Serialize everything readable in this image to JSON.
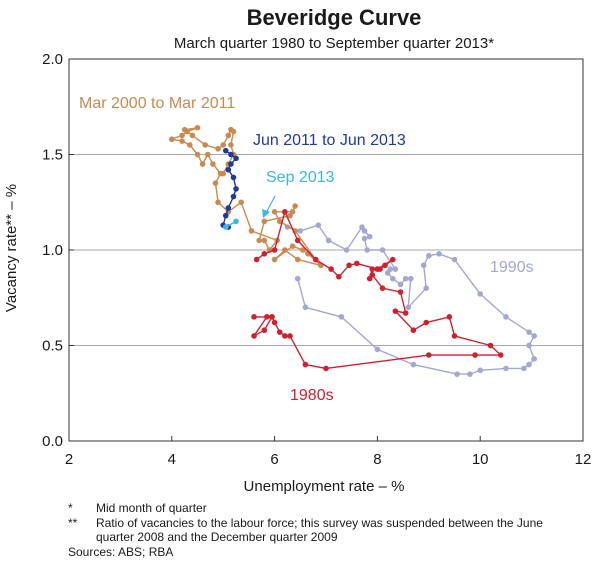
{
  "chart_data": {
    "type": "scatter-line",
    "title": "Beveridge Curve",
    "subtitle": "March quarter 1980 to September quarter 2013*",
    "xlabel": "Unemployment rate – %",
    "ylabel": "Vacancy rate** – %",
    "xlim": [
      2,
      12
    ],
    "ylim": [
      0,
      2
    ],
    "xticks": [
      2,
      4,
      6,
      8,
      10,
      12
    ],
    "yticks": [
      0.0,
      0.5,
      1.0,
      1.5,
      2.0
    ],
    "xtick_labels": [
      "2",
      "4",
      "6",
      "8",
      "10",
      "12"
    ],
    "ytick_labels": [
      "0.0",
      "0.5",
      "1.0",
      "1.5",
      "2.0"
    ],
    "grid": "horizontal",
    "series": [
      {
        "name": "1980s",
        "color": "#d0202e",
        "points": [
          [
            5.6,
            0.65
          ],
          [
            5.85,
            0.65
          ],
          [
            5.6,
            0.55
          ],
          [
            5.8,
            0.58
          ],
          [
            5.95,
            0.65
          ],
          [
            6.0,
            0.62
          ],
          [
            6.1,
            0.57
          ],
          [
            6.2,
            0.55
          ],
          [
            6.3,
            0.55
          ],
          [
            6.6,
            0.4
          ],
          [
            7.0,
            0.38
          ],
          [
            9.0,
            0.45
          ],
          [
            9.9,
            0.45
          ],
          [
            10.4,
            0.45
          ],
          [
            10.2,
            0.5
          ],
          [
            9.5,
            0.55
          ],
          [
            9.4,
            0.65
          ],
          [
            8.95,
            0.62
          ],
          [
            8.7,
            0.58
          ],
          [
            8.35,
            0.68
          ],
          [
            8.55,
            0.67
          ],
          [
            8.45,
            0.78
          ],
          [
            8.1,
            0.8
          ],
          [
            7.9,
            0.87
          ],
          [
            7.85,
            0.85
          ],
          [
            7.9,
            0.9
          ],
          [
            8.05,
            0.9
          ],
          [
            8.15,
            0.92
          ],
          [
            8.3,
            0.95
          ],
          [
            8.0,
            0.9
          ],
          [
            7.6,
            0.93
          ],
          [
            7.45,
            0.92
          ],
          [
            7.25,
            0.86
          ],
          [
            7.1,
            0.9
          ],
          [
            6.8,
            0.95
          ],
          [
            6.45,
            1.05
          ],
          [
            6.2,
            1.2
          ],
          [
            6.0,
            1.0
          ],
          [
            5.8,
            0.98
          ],
          [
            5.65,
            0.95
          ]
        ]
      },
      {
        "name": "1990s",
        "color": "#a4a7d2",
        "points": [
          [
            6.45,
            0.85
          ],
          [
            6.6,
            0.7
          ],
          [
            7.3,
            0.65
          ],
          [
            8.0,
            0.48
          ],
          [
            8.7,
            0.4
          ],
          [
            9.55,
            0.35
          ],
          [
            9.8,
            0.35
          ],
          [
            10.0,
            0.37
          ],
          [
            10.5,
            0.38
          ],
          [
            10.85,
            0.38
          ],
          [
            10.95,
            0.4
          ],
          [
            11.05,
            0.43
          ],
          [
            10.95,
            0.5
          ],
          [
            11.05,
            0.55
          ],
          [
            10.95,
            0.57
          ],
          [
            10.5,
            0.65
          ],
          [
            10.0,
            0.77
          ],
          [
            9.5,
            0.95
          ],
          [
            9.2,
            0.98
          ],
          [
            9.0,
            0.97
          ],
          [
            8.9,
            0.92
          ],
          [
            8.95,
            0.8
          ],
          [
            8.6,
            0.7
          ],
          [
            8.65,
            0.85
          ],
          [
            8.55,
            0.85
          ],
          [
            8.45,
            0.82
          ],
          [
            8.3,
            0.85
          ],
          [
            8.2,
            0.88
          ],
          [
            8.25,
            0.9
          ],
          [
            8.35,
            0.9
          ],
          [
            8.1,
            1.0
          ],
          [
            7.8,
            1.0
          ],
          [
            7.75,
            1.06
          ],
          [
            7.85,
            1.07
          ],
          [
            7.75,
            1.1
          ],
          [
            7.7,
            1.12
          ],
          [
            7.4,
            1.0
          ],
          [
            7.05,
            1.05
          ],
          [
            6.85,
            1.13
          ],
          [
            6.5,
            1.1
          ],
          [
            6.25,
            1.12
          ]
        ]
      },
      {
        "name": "Mar 2000 to Mar 2011",
        "color": "#c88a50",
        "points": [
          [
            6.9,
            0.92
          ],
          [
            6.45,
            0.95
          ],
          [
            6.2,
            1.0
          ],
          [
            6.0,
            0.95
          ],
          [
            6.35,
            1.02
          ],
          [
            6.55,
            1.0
          ],
          [
            6.65,
            0.98
          ],
          [
            6.9,
            0.92
          ],
          [
            6.8,
            0.95
          ],
          [
            6.4,
            1.1
          ],
          [
            6.1,
            1.15
          ],
          [
            6.0,
            1.2
          ],
          [
            6.35,
            1.2
          ],
          [
            6.4,
            1.23
          ],
          [
            6.3,
            1.18
          ],
          [
            5.8,
            1.15
          ],
          [
            5.7,
            1.05
          ],
          [
            5.8,
            1.05
          ],
          [
            5.9,
            1.0
          ],
          [
            6.05,
            1.05
          ],
          [
            5.55,
            1.1
          ],
          [
            5.35,
            1.25
          ],
          [
            5.1,
            1.2
          ],
          [
            4.9,
            1.25
          ],
          [
            4.85,
            1.35
          ],
          [
            4.95,
            1.4
          ],
          [
            4.8,
            1.45
          ],
          [
            4.7,
            1.5
          ],
          [
            4.6,
            1.45
          ],
          [
            4.5,
            1.5
          ],
          [
            4.35,
            1.55
          ],
          [
            4.2,
            1.57
          ],
          [
            4.0,
            1.58
          ],
          [
            4.2,
            1.6
          ],
          [
            4.3,
            1.62
          ],
          [
            4.5,
            1.64
          ],
          [
            4.25,
            1.63
          ],
          [
            4.4,
            1.6
          ],
          [
            4.65,
            1.55
          ],
          [
            4.9,
            1.53
          ],
          [
            5.0,
            1.55
          ],
          [
            5.1,
            1.6
          ],
          [
            5.15,
            1.63
          ],
          [
            5.2,
            1.62
          ],
          [
            5.15,
            1.55
          ],
          [
            5.2,
            1.5
          ],
          [
            5.1,
            1.45
          ],
          [
            5.0,
            1.4
          ]
        ]
      },
      {
        "name": "Jun 2011 to Jun 2013",
        "color": "#1f3a9a",
        "points": [
          [
            5.05,
            1.52
          ],
          [
            5.15,
            1.5
          ],
          [
            5.25,
            1.48
          ],
          [
            5.15,
            1.45
          ],
          [
            5.1,
            1.42
          ],
          [
            5.2,
            1.38
          ],
          [
            5.25,
            1.32
          ],
          [
            5.2,
            1.28
          ],
          [
            5.1,
            1.22
          ],
          [
            5.05,
            1.18
          ],
          [
            5.0,
            1.13
          ],
          [
            5.1,
            1.12
          ]
        ]
      },
      {
        "name": "Sep 2013",
        "color": "#3ab6e8",
        "points": [
          [
            5.05,
            1.12
          ],
          [
            5.25,
            1.15
          ]
        ]
      }
    ],
    "annotations": [
      {
        "text": "Mar 2000 to Mar 2011",
        "series": "Mar 2000 to Mar 2011"
      },
      {
        "text": "Jun 2011 to Jun 2013",
        "series": "Jun 2011 to Jun 2013"
      },
      {
        "text": "Sep 2013",
        "series": "Sep 2013"
      },
      {
        "text": "1990s",
        "series": "1990s"
      },
      {
        "text": "1980s",
        "series": "1980s"
      }
    ]
  },
  "footnotes": [
    {
      "mark": "*",
      "text": "Mid month of quarter"
    },
    {
      "mark": "**",
      "text": "Ratio of vacancies to the labour force; this survey was suspended between the June quarter 2008 and the December quarter 2009"
    }
  ],
  "sources": "Sources: ABS; RBA"
}
